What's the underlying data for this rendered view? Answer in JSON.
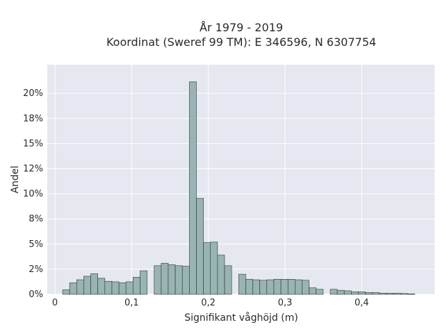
{
  "chart_data": {
    "type": "bar",
    "title": "År 1979 - 2019",
    "subtitle": "Koordinat (Sweref 99 TM): E 346596, N 6307754",
    "xlabel": "Signifikant våghöjd (m)",
    "ylabel": "Andel",
    "xlim": [
      -0.01,
      0.495
    ],
    "ylim": [
      0,
      0.2285
    ],
    "x_ticks": [
      0,
      0.1,
      0.2,
      0.3,
      0.4
    ],
    "x_tick_labels": [
      "0",
      "0,1",
      "0,2",
      "0,3",
      "0,4"
    ],
    "y_ticks": [
      0,
      0.025,
      0.05,
      0.075,
      0.1,
      0.125,
      0.15,
      0.175,
      0.2
    ],
    "y_tick_labels": [
      "0%",
      "2%",
      "5%",
      "8%",
      "10%",
      "12%",
      "15%",
      "18%",
      "20%"
    ],
    "bin_width": 0.00918,
    "bins": [
      {
        "x": 0.01,
        "v": 0.0045
      },
      {
        "x": 0.0192,
        "v": 0.0115
      },
      {
        "x": 0.0284,
        "v": 0.0145
      },
      {
        "x": 0.0375,
        "v": 0.018
      },
      {
        "x": 0.0467,
        "v": 0.0205
      },
      {
        "x": 0.0559,
        "v": 0.016
      },
      {
        "x": 0.0651,
        "v": 0.013
      },
      {
        "x": 0.0743,
        "v": 0.0125
      },
      {
        "x": 0.0835,
        "v": 0.0115
      },
      {
        "x": 0.0926,
        "v": 0.0125
      },
      {
        "x": 0.1018,
        "v": 0.017
      },
      {
        "x": 0.111,
        "v": 0.0235
      },
      {
        "x": 0.1294,
        "v": 0.0285
      },
      {
        "x": 0.1386,
        "v": 0.031
      },
      {
        "x": 0.1477,
        "v": 0.0295
      },
      {
        "x": 0.1569,
        "v": 0.0285
      },
      {
        "x": 0.1661,
        "v": 0.028
      },
      {
        "x": 0.1753,
        "v": 0.2115
      },
      {
        "x": 0.1845,
        "v": 0.0955
      },
      {
        "x": 0.1937,
        "v": 0.0515
      },
      {
        "x": 0.2028,
        "v": 0.052
      },
      {
        "x": 0.212,
        "v": 0.039
      },
      {
        "x": 0.2212,
        "v": 0.0285
      },
      {
        "x": 0.2396,
        "v": 0.02
      },
      {
        "x": 0.2488,
        "v": 0.015
      },
      {
        "x": 0.2579,
        "v": 0.0145
      },
      {
        "x": 0.2671,
        "v": 0.014
      },
      {
        "x": 0.2763,
        "v": 0.0145
      },
      {
        "x": 0.2855,
        "v": 0.015
      },
      {
        "x": 0.2947,
        "v": 0.015
      },
      {
        "x": 0.3039,
        "v": 0.015
      },
      {
        "x": 0.313,
        "v": 0.0145
      },
      {
        "x": 0.3222,
        "v": 0.014
      },
      {
        "x": 0.3314,
        "v": 0.0065
      },
      {
        "x": 0.3406,
        "v": 0.005
      },
      {
        "x": 0.359,
        "v": 0.005
      },
      {
        "x": 0.3681,
        "v": 0.004
      },
      {
        "x": 0.3773,
        "v": 0.0035
      },
      {
        "x": 0.3865,
        "v": 0.0025
      },
      {
        "x": 0.3957,
        "v": 0.0025
      },
      {
        "x": 0.4049,
        "v": 0.0018
      },
      {
        "x": 0.4141,
        "v": 0.0018
      },
      {
        "x": 0.4232,
        "v": 0.0012
      },
      {
        "x": 0.4324,
        "v": 0.0012
      },
      {
        "x": 0.4416,
        "v": 0.0012
      },
      {
        "x": 0.4508,
        "v": 0.0008
      },
      {
        "x": 0.46,
        "v": 0.0005
      }
    ],
    "bar_color": "#98b4b4",
    "bar_edge_color": "#333333",
    "plot_background": "#e5e8f0",
    "grid": true
  }
}
